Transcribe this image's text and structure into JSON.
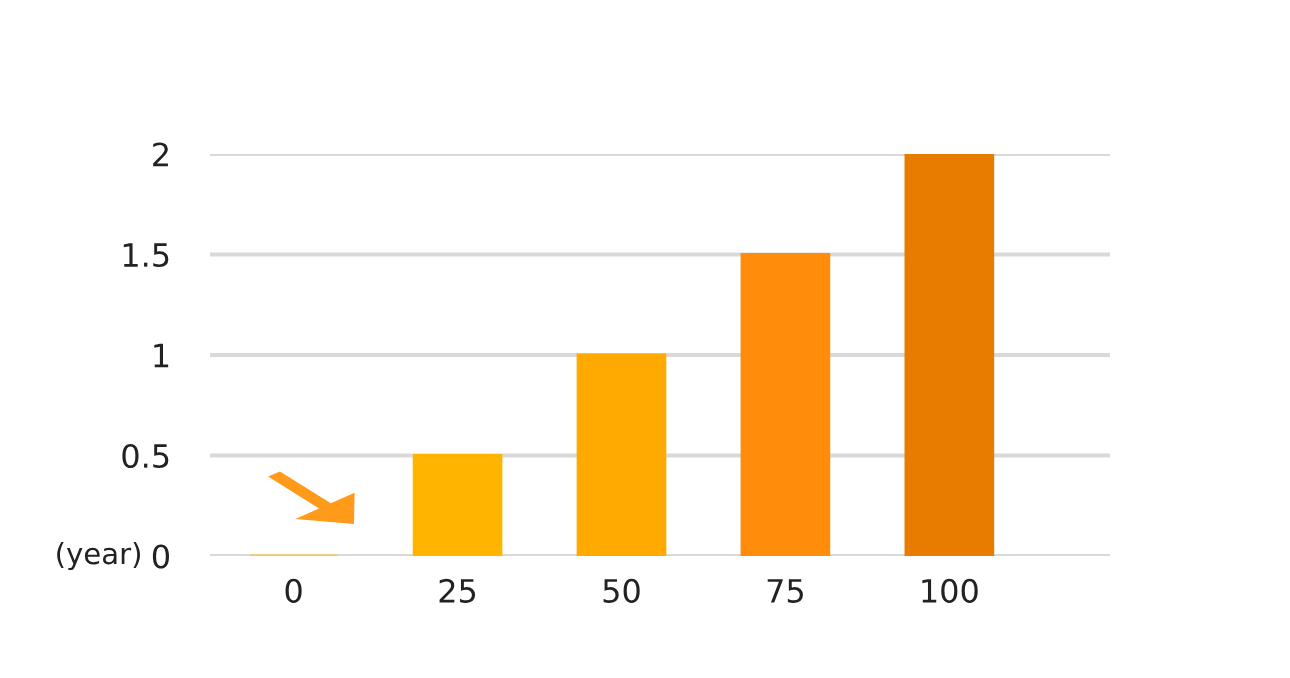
{
  "chart_data": {
    "type": "bar",
    "ylabel": "(year)",
    "categories": [
      "0",
      "25",
      "50",
      "75",
      "100"
    ],
    "values": [
      0,
      0.5,
      1,
      1.5,
      2
    ],
    "colors": [
      "#ffc933",
      "#ffb400",
      "#ffaa00",
      "#ff8c0a",
      "#e87c00"
    ],
    "ylim": [
      0,
      2
    ],
    "yticks": [
      0,
      0.5,
      1,
      1.5,
      2
    ],
    "grid": "y"
  }
}
